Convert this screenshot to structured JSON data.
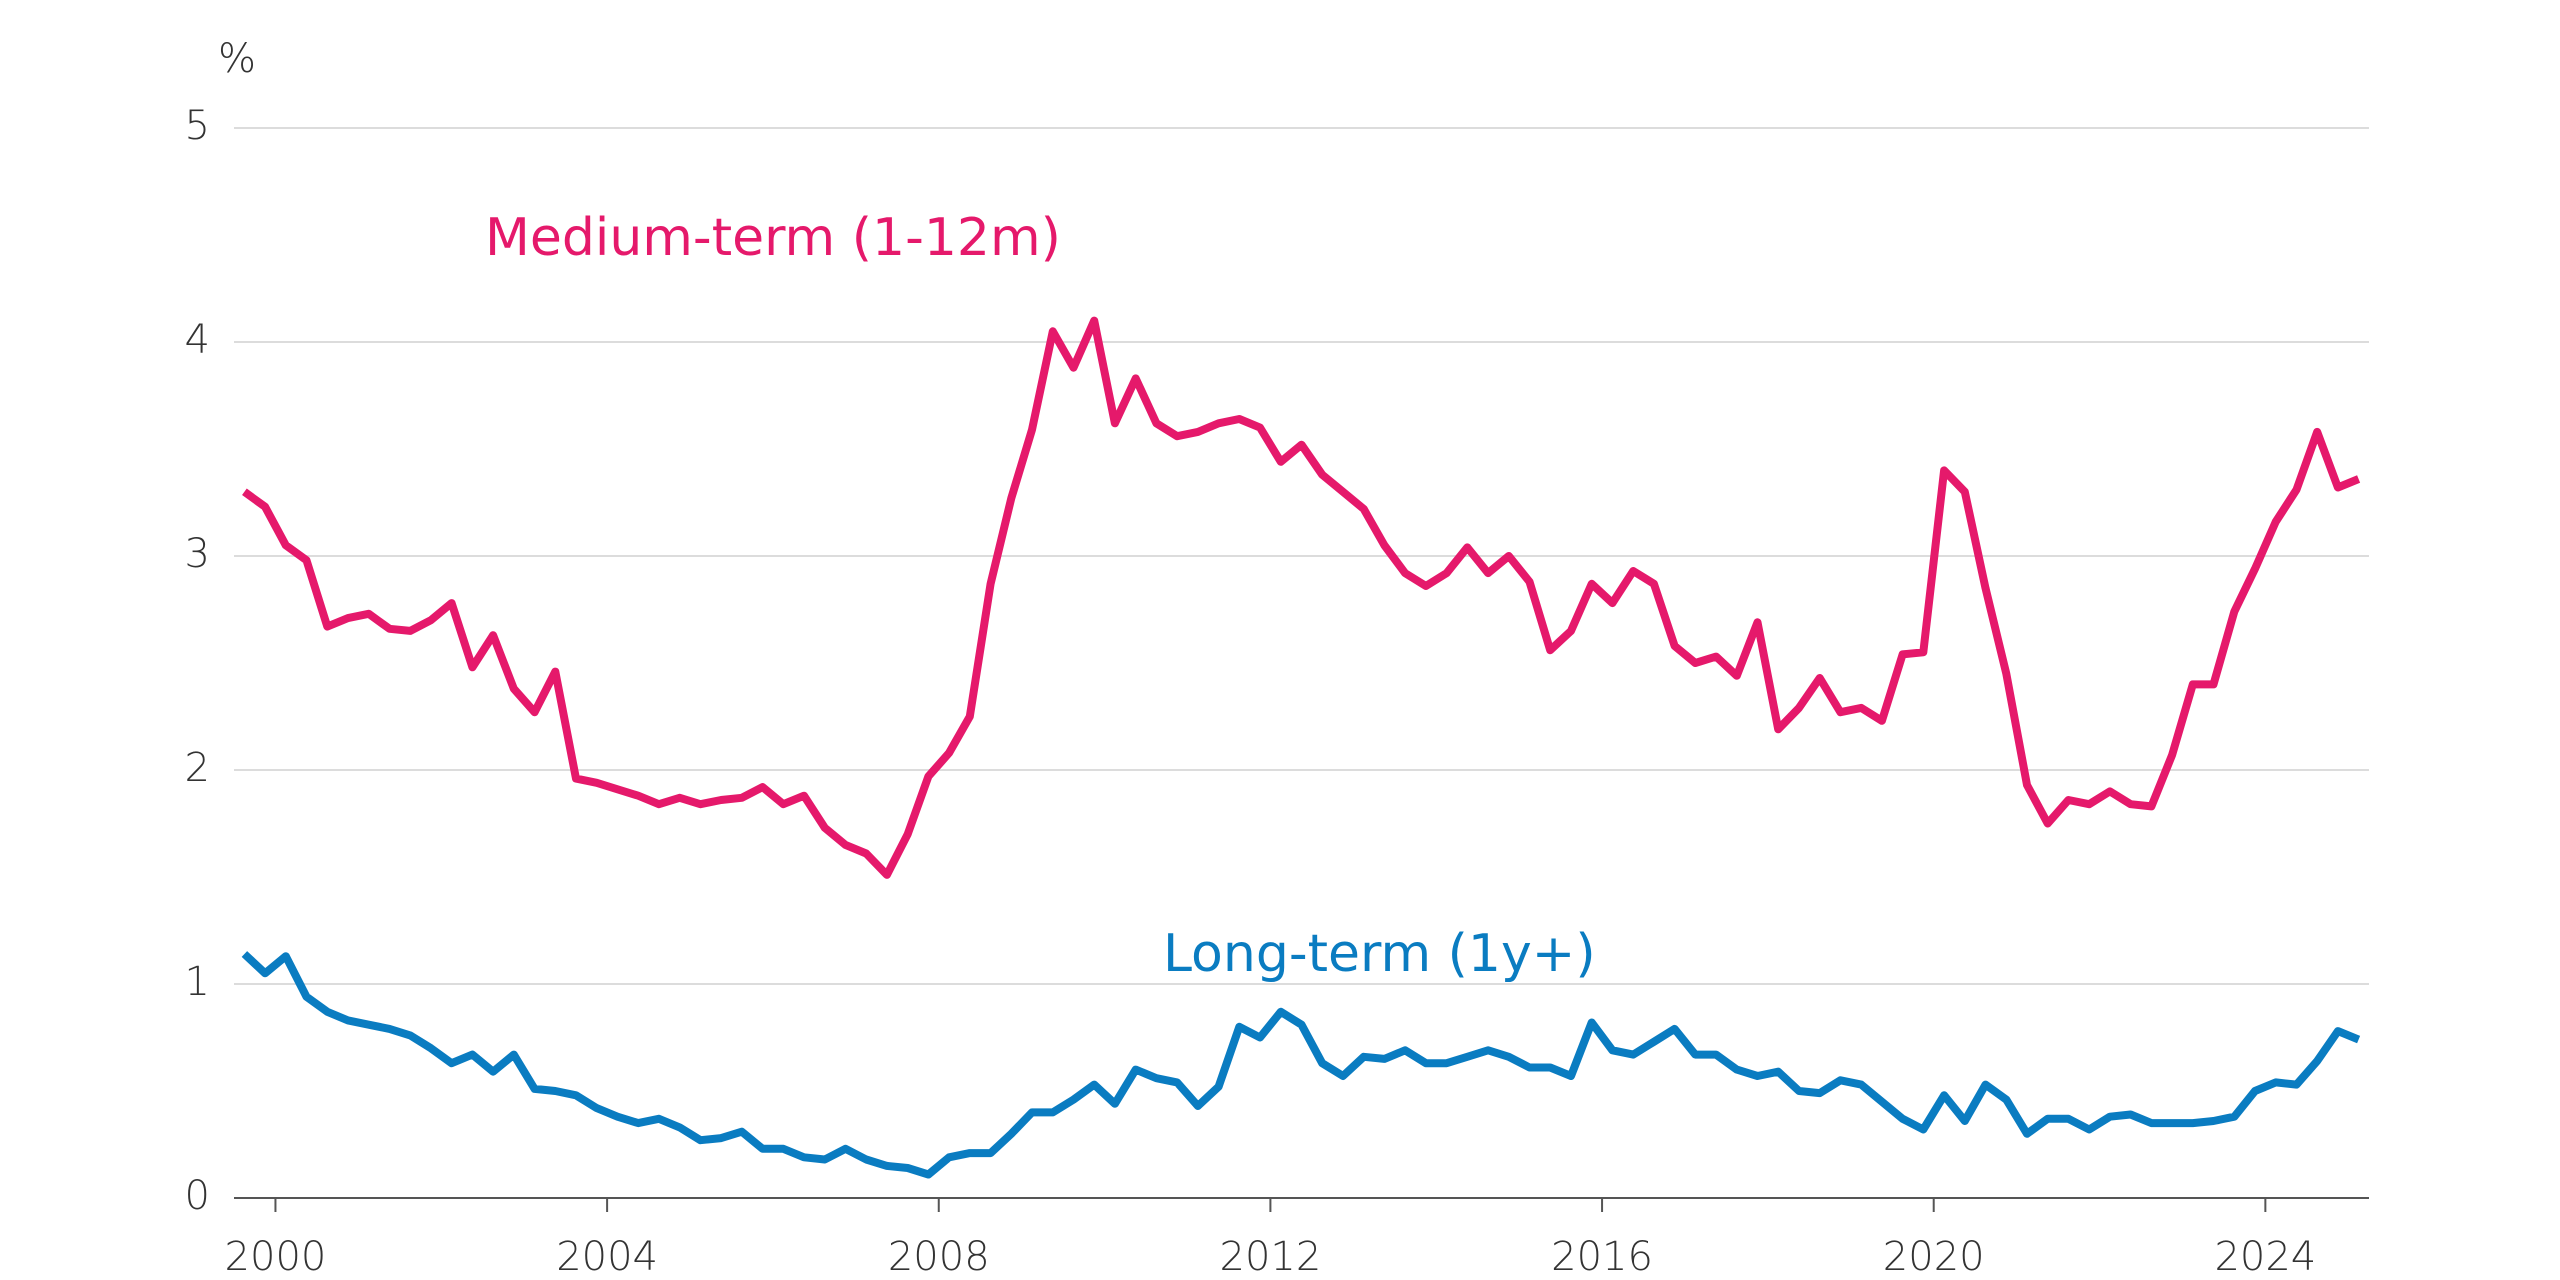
{
  "chart_data": {
    "type": "line",
    "y_label": "%",
    "x": [
      2000.125,
      2000.375,
      2000.625,
      2000.875,
      2001.125,
      2001.375,
      2001.625,
      2001.875,
      2002.125,
      2002.375,
      2002.625,
      2002.875,
      2003.125,
      2003.375,
      2003.625,
      2003.875,
      2004.125,
      2004.375,
      2004.625,
      2004.875,
      2005.125,
      2005.375,
      2005.625,
      2005.875,
      2006.125,
      2006.375,
      2006.625,
      2006.875,
      2007.125,
      2007.375,
      2007.625,
      2007.875,
      2008.125,
      2008.375,
      2008.625,
      2008.875,
      2009.125,
      2009.375,
      2009.625,
      2009.875,
      2010.125,
      2010.375,
      2010.625,
      2010.875,
      2011.125,
      2011.375,
      2011.625,
      2011.875,
      2012.125,
      2012.375,
      2012.625,
      2012.875,
      2013.125,
      2013.375,
      2013.625,
      2013.875,
      2014.125,
      2014.375,
      2014.625,
      2014.875,
      2015.125,
      2015.375,
      2015.625,
      2015.875,
      2016.125,
      2016.375,
      2016.625,
      2016.875,
      2017.125,
      2017.375,
      2017.625,
      2017.875,
      2018.125,
      2018.375,
      2018.625,
      2018.875,
      2019.125,
      2019.375,
      2019.625,
      2019.875,
      2020.125,
      2020.375,
      2020.625,
      2020.875,
      2021.125,
      2021.375,
      2021.625,
      2021.875,
      2022.125,
      2022.375,
      2022.625,
      2022.875,
      2023.125,
      2023.375,
      2023.625,
      2023.875,
      2024.125,
      2024.375,
      2024.625,
      2024.875,
      2025.125,
      2025.375,
      2025.625
    ],
    "series": [
      {
        "name": "Medium-term (1-12m)",
        "color": "#e5196b",
        "values": [
          3.3,
          3.23,
          3.05,
          2.98,
          2.67,
          2.71,
          2.73,
          2.66,
          2.65,
          2.7,
          2.78,
          2.48,
          2.63,
          2.38,
          2.27,
          2.46,
          1.96,
          1.94,
          1.91,
          1.88,
          1.84,
          1.87,
          1.84,
          1.86,
          1.87,
          1.92,
          1.84,
          1.88,
          1.73,
          1.65,
          1.61,
          1.51,
          1.7,
          1.97,
          2.08,
          2.25,
          2.87,
          3.27,
          3.59,
          4.05,
          3.88,
          4.1,
          3.62,
          3.83,
          3.62,
          3.56,
          3.58,
          3.62,
          3.64,
          3.6,
          3.44,
          3.52,
          3.38,
          3.3,
          3.22,
          3.05,
          2.92,
          2.86,
          2.92,
          3.04,
          2.92,
          3.0,
          2.88,
          2.56,
          2.65,
          2.87,
          2.78,
          2.93,
          2.87,
          2.58,
          2.5,
          2.53,
          2.44,
          2.69,
          2.19,
          2.29,
          2.43,
          2.27,
          2.29,
          2.23,
          2.54,
          2.55,
          3.4,
          3.3,
          2.85,
          2.45,
          1.93,
          1.75,
          1.86,
          1.84,
          1.9,
          1.84,
          1.83,
          2.07,
          2.4,
          2.4,
          2.74,
          2.94,
          3.16,
          3.31,
          3.58,
          3.32,
          3.36
        ]
      },
      {
        "name": "Long-term (1y+)",
        "color": "#0a7cc1",
        "values": [
          1.14,
          1.05,
          1.13,
          0.94,
          0.87,
          0.83,
          0.81,
          0.79,
          0.76,
          0.7,
          0.63,
          0.67,
          0.59,
          0.67,
          0.51,
          0.5,
          0.48,
          0.42,
          0.38,
          0.35,
          0.37,
          0.33,
          0.27,
          0.28,
          0.31,
          0.23,
          0.23,
          0.19,
          0.18,
          0.23,
          0.18,
          0.15,
          0.14,
          0.11,
          0.19,
          0.21,
          0.21,
          0.3,
          0.4,
          0.4,
          0.46,
          0.53,
          0.44,
          0.6,
          0.56,
          0.54,
          0.43,
          0.52,
          0.8,
          0.75,
          0.87,
          0.81,
          0.63,
          0.57,
          0.66,
          0.65,
          0.69,
          0.63,
          0.63,
          0.66,
          0.69,
          0.66,
          0.61,
          0.61,
          0.57,
          0.82,
          0.69,
          0.67,
          0.73,
          0.79,
          0.67,
          0.67,
          0.6,
          0.57,
          0.59,
          0.5,
          0.49,
          0.55,
          0.53,
          0.45,
          0.37,
          0.32,
          0.48,
          0.36,
          0.53,
          0.46,
          0.3,
          0.37,
          0.37,
          0.32,
          0.38,
          0.39,
          0.35,
          0.35,
          0.35,
          0.36,
          0.38,
          0.5,
          0.54,
          0.53,
          0.64,
          0.78,
          0.74
        ]
      }
    ],
    "xlim": [
      2000,
      2025.75
    ],
    "xticks": [
      {
        "value": 2000.5,
        "label": "2000"
      },
      {
        "value": 2004.5,
        "label": "2004"
      },
      {
        "value": 2008.5,
        "label": "2008"
      },
      {
        "value": 2012.5,
        "label": "2012"
      },
      {
        "value": 2016.5,
        "label": "2016"
      },
      {
        "value": 2020.5,
        "label": "2020"
      },
      {
        "value": 2024.5,
        "label": "2024"
      }
    ],
    "ylim": [
      0,
      5
    ],
    "yticks": [
      0,
      1,
      2,
      3,
      4,
      5
    ],
    "grid": true
  }
}
